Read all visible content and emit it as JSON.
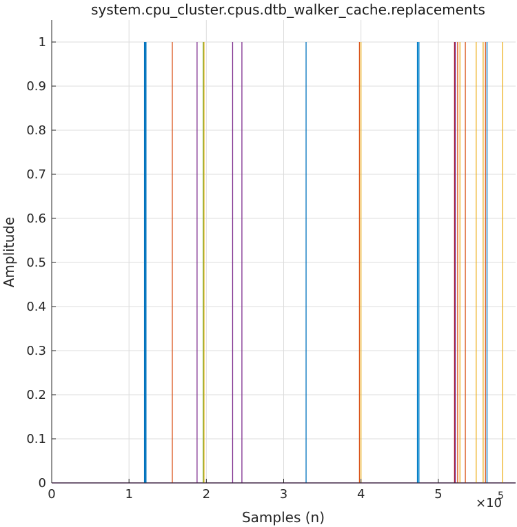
{
  "chart_data": {
    "type": "line",
    "title": "system.cpu_cluster.cpus.dtb_walker_cache.replacements",
    "xlabel": "Samples (n)",
    "ylabel": "Amplitude",
    "x_exponent_label": "×10",
    "x_exponent_power": "5",
    "xlim": [
      0,
      600000
    ],
    "ylim": [
      0,
      1.05
    ],
    "x_ticks": [
      0,
      100000,
      200000,
      300000,
      400000,
      500000
    ],
    "x_tick_labels": [
      "0",
      "1",
      "2",
      "3",
      "4",
      "5"
    ],
    "y_ticks": [
      0,
      0.1,
      0.2,
      0.3,
      0.4,
      0.5,
      0.6,
      0.7,
      0.8,
      0.9,
      1
    ],
    "y_tick_labels": [
      "0",
      "0.1",
      "0.2",
      "0.3",
      "0.4",
      "0.5",
      "0.6",
      "0.7",
      "0.8",
      "0.9",
      "1"
    ],
    "grid": true,
    "series": [
      {
        "color": "#0072BD",
        "x": [
          120000,
          121000,
          122000,
          329000,
          473000,
          475000,
          563000
        ]
      },
      {
        "color": "#D95319",
        "x": [
          156000,
          398000,
          525000,
          535000,
          561000
        ]
      },
      {
        "color": "#EDB120",
        "x": [
          197000,
          400000,
          528000,
          549000,
          558000,
          583000
        ]
      },
      {
        "color": "#7E2F8E",
        "x": [
          188000,
          234000,
          246000,
          522000
        ]
      },
      {
        "color": "#77AC30",
        "x": [
          196000
        ]
      },
      {
        "color": "#4DBEEE",
        "x": [
          474000
        ]
      },
      {
        "color": "#A2142F",
        "x": [
          521000
        ]
      }
    ]
  }
}
